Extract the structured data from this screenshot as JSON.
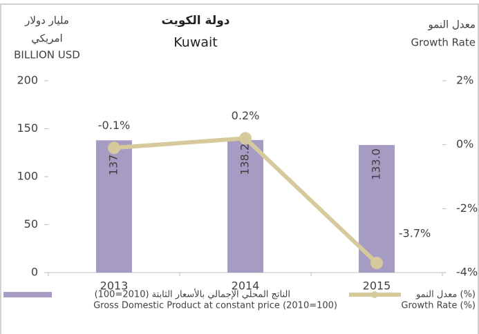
{
  "chart_data": {
    "type": "combo",
    "title": "دولة الكويت",
    "subtitle": "Kuwait",
    "ylabel": [
      "مليار دولار",
      "امريكي",
      "BILLION USD"
    ],
    "y2label": [
      "معدل النمو",
      "Growth Rate"
    ],
    "categories": [
      "2013",
      "2014",
      "2015"
    ],
    "series": [
      {
        "name": "الناتج المحلي الإجمالي بالأسعار الثابتة (2010=100)",
        "name_en": "Gross Domestic Product at constant price (2010=100)",
        "kind": "bar",
        "color": "#a59bc3",
        "values": [
          137.9,
          138.2,
          133.0
        ],
        "value_labels": [
          "137.9",
          "138.2",
          "133.0"
        ]
      },
      {
        "name": "معدل النمو (%)",
        "name_en": "Growth Rate (%)",
        "kind": "line",
        "axis": "y2",
        "color": "#d6ca9c",
        "values": [
          -0.1,
          0.2,
          -3.7
        ],
        "value_labels": [
          "-0.1%",
          "0.2%",
          "-3.7%"
        ]
      }
    ],
    "ylim": [
      0,
      200
    ],
    "yticks": [
      0,
      50,
      100,
      150,
      200
    ],
    "y2lim": [
      -4,
      2
    ],
    "y2ticks": [
      {
        "value": -4,
        "label": "-4%"
      },
      {
        "value": -2,
        "label": "-2%"
      },
      {
        "value": 0,
        "label": "0%"
      },
      {
        "value": 2,
        "label": "2%"
      }
    ],
    "grid": false
  }
}
